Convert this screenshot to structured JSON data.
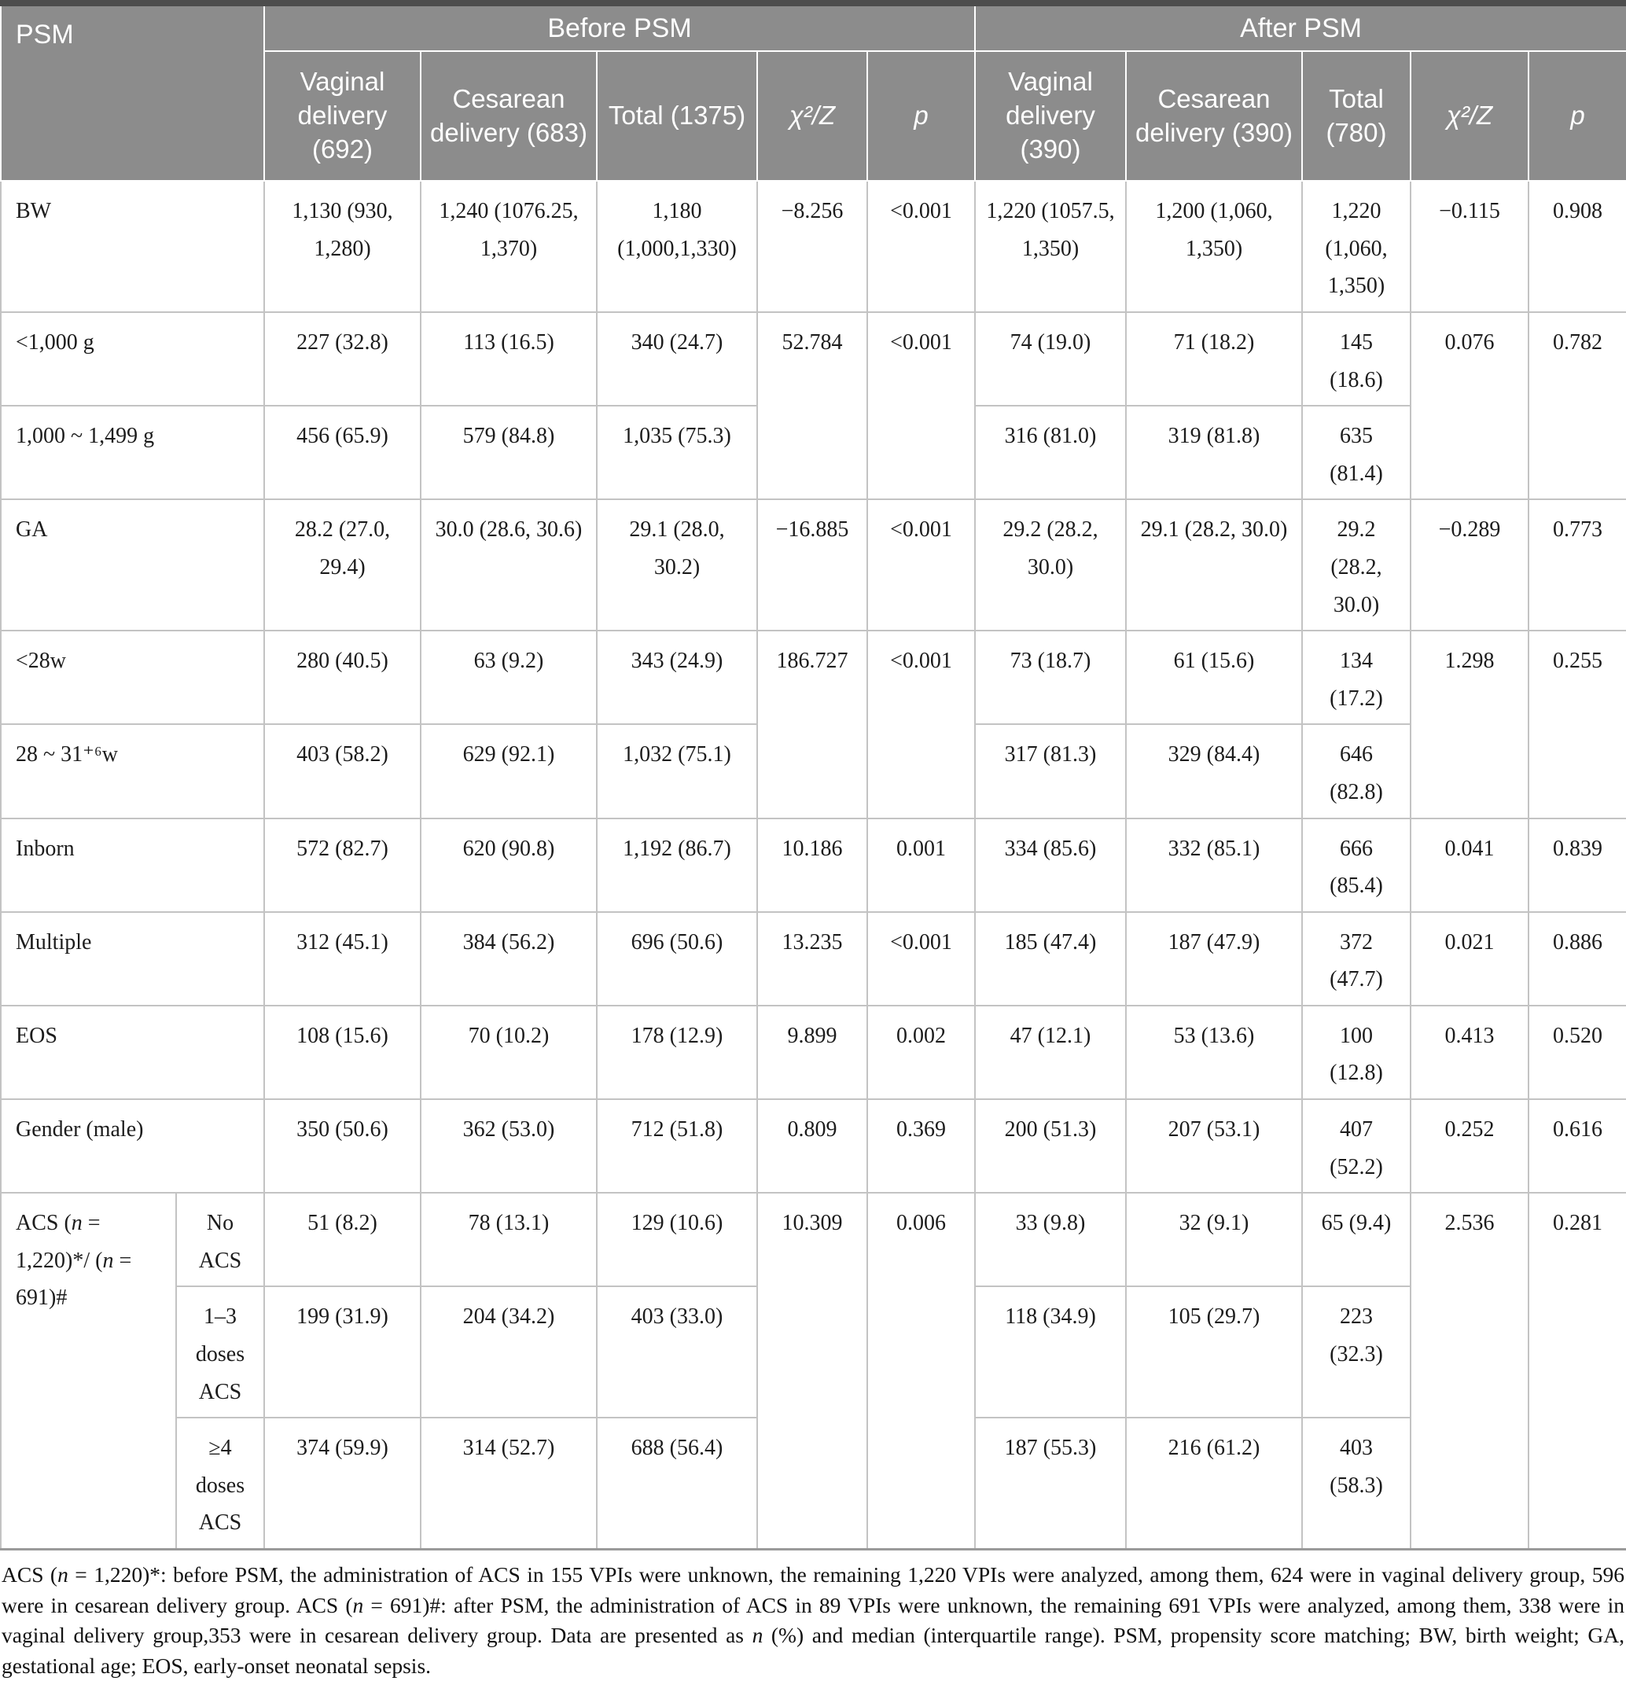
{
  "colors": {
    "header_bg": "#8c8c8c",
    "header_text": "#ffffff",
    "top_border": "#4d4d4d",
    "grid_line": "#c3c3c3",
    "body_text": "#1c1c1c"
  },
  "header": {
    "psm": "PSM",
    "before": "Before PSM",
    "after": "After PSM",
    "cols": [
      "Vaginal delivery (692)",
      "Cesarean delivery (683)",
      "Total (1375)",
      "χ²/Z",
      "p",
      "Vaginal delivery (390)",
      "Cesarean delivery (390)",
      "Total (780)",
      "χ²/Z",
      "p"
    ]
  },
  "rows": {
    "bw": {
      "label": "BW",
      "v1": "1,130 (930, 1,280)",
      "c1": "1,240 (1076.25, 1,370)",
      "t1": "1,180 (1,000,1,330)",
      "x1": "−8.256",
      "p1": "<0.001",
      "v2": "1,220 (1057.5, 1,350)",
      "c2": "1,200 (1,060, 1,350)",
      "t2": "1,220 (1,060, 1,350)",
      "x2": "−0.115",
      "p2": "0.908"
    },
    "lt1000": {
      "label": "<1,000 g",
      "v1": "227 (32.8)",
      "c1": "113 (16.5)",
      "t1": "340 (24.7)",
      "x1": "52.784",
      "p1": "<0.001",
      "v2": "74 (19.0)",
      "c2": "71 (18.2)",
      "t2": "145 (18.6)",
      "x2": "0.076",
      "p2": "0.782"
    },
    "w1000": {
      "label": "1,000 ~ 1,499 g",
      "v1": "456 (65.9)",
      "c1": "579 (84.8)",
      "t1": "1,035 (75.3)",
      "v2": "316 (81.0)",
      "c2": "319 (81.8)",
      "t2": "635 (81.4)"
    },
    "ga": {
      "label": "GA",
      "v1": "28.2 (27.0, 29.4)",
      "c1": "30.0 (28.6, 30.6)",
      "t1": "29.1 (28.0, 30.2)",
      "x1": "−16.885",
      "p1": "<0.001",
      "v2": "29.2 (28.2, 30.0)",
      "c2": "29.1 (28.2, 30.0)",
      "t2": "29.2 (28.2, 30.0)",
      "x2": "−0.289",
      "p2": "0.773"
    },
    "lt28w": {
      "label": "<28w",
      "v1": "280 (40.5)",
      "c1": "63 (9.2)",
      "t1": "343 (24.9)",
      "x1": "186.727",
      "p1": "<0.001",
      "v2": "73 (18.7)",
      "c2": "61 (15.6)",
      "t2": "134 (17.2)",
      "x2": "1.298",
      "p2": "0.255"
    },
    "w2831": {
      "label": "28 ~ 31⁺⁶w",
      "v1": "403 (58.2)",
      "c1": "629 (92.1)",
      "t1": "1,032 (75.1)",
      "v2": "317 (81.3)",
      "c2": "329 (84.4)",
      "t2": "646 (82.8)"
    },
    "inborn": {
      "label": "Inborn",
      "v1": "572 (82.7)",
      "c1": "620 (90.8)",
      "t1": "1,192 (86.7)",
      "x1": "10.186",
      "p1": "0.001",
      "v2": "334 (85.6)",
      "c2": "332 (85.1)",
      "t2": "666 (85.4)",
      "x2": "0.041",
      "p2": "0.839"
    },
    "multiple": {
      "label": "Multiple",
      "v1": "312 (45.1)",
      "c1": "384 (56.2)",
      "t1": "696 (50.6)",
      "x1": "13.235",
      "p1": "<0.001",
      "v2": "185 (47.4)",
      "c2": "187 (47.9)",
      "t2": "372 (47.7)",
      "x2": "0.021",
      "p2": "0.886"
    },
    "eos": {
      "label": "EOS",
      "v1": "108 (15.6)",
      "c1": "70 (10.2)",
      "t1": "178 (12.9)",
      "x1": "9.899",
      "p1": "0.002",
      "v2": "47 (12.1)",
      "c2": "53 (13.6)",
      "t2": "100 (12.8)",
      "x2": "0.413",
      "p2": "0.520"
    },
    "gender": {
      "label": "Gender (male)",
      "v1": "350 (50.6)",
      "c1": "362 (53.0)",
      "t1": "712 (51.8)",
      "x1": "0.809",
      "p1": "0.369",
      "v2": "200 (51.3)",
      "c2": "207 (53.1)",
      "t2": "407 (52.2)",
      "x2": "0.252",
      "p2": "0.616"
    },
    "acs": {
      "label": [
        {
          "t": "ACS ("
        },
        {
          "t": "n",
          "i": true
        },
        {
          "t": " = 1,220)*/ ("
        },
        {
          "t": "n",
          "i": true
        },
        {
          "t": " = 691)#"
        }
      ],
      "no": {
        "label": "No ACS",
        "v1": "51 (8.2)",
        "c1": "78 (13.1)",
        "t1": "129 (10.6)",
        "x1": "10.309",
        "p1": "0.006",
        "v2": "33 (9.8)",
        "c2": "32 (9.1)",
        "t2": "65 (9.4)",
        "x2": "2.536",
        "p2": "0.281"
      },
      "d13": {
        "label": "1–3 doses ACS",
        "v1": "199 (31.9)",
        "c1": "204 (34.2)",
        "t1": "403 (33.0)",
        "v2": "118 (34.9)",
        "c2": "105 (29.7)",
        "t2": "223 (32.3)"
      },
      "d4": {
        "label": "≥4 doses ACS",
        "v1": "374 (59.9)",
        "c1": "314 (52.7)",
        "t1": "688 (56.4)",
        "v2": "187 (55.3)",
        "c2": "216 (61.2)",
        "t2": "403 (58.3)"
      }
    }
  },
  "footnote": [
    {
      "t": "ACS ("
    },
    {
      "t": "n",
      "i": true
    },
    {
      "t": " = 1,220)*: before PSM, the administration of ACS in 155 VPIs were unknown, the remaining 1,220 VPIs were analyzed, among them, 624 were in vaginal delivery group, 596 were in cesarean delivery group. ACS ("
    },
    {
      "t": "n",
      "i": true
    },
    {
      "t": " = 691)#: after PSM, the administration of ACS in 89 VPIs were unknown, the remaining 691 VPIs were analyzed, among them, 338 were in vaginal delivery group,353 were in cesarean delivery group. Data are presented as "
    },
    {
      "t": "n",
      "i": true
    },
    {
      "t": " (%) and median (interquartile range). PSM, propensity score matching; BW, birth weight; GA, gestational age; EOS, early-onset neonatal sepsis."
    }
  ]
}
